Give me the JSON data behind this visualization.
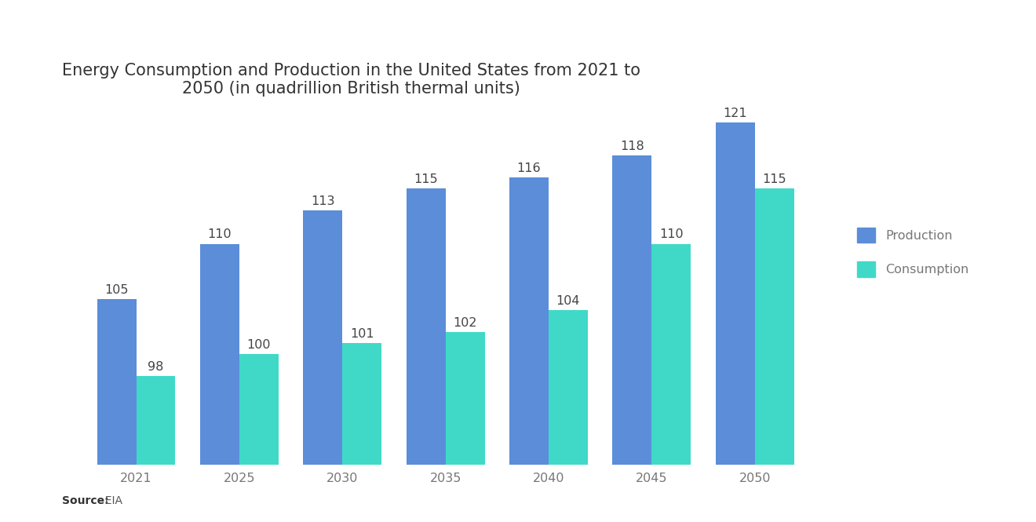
{
  "title": "Energy Consumption and Production in the United States from 2021 to\n2050 (in quadrillion British thermal units)",
  "categories": [
    "2021",
    "2025",
    "2030",
    "2035",
    "2040",
    "2045",
    "2050"
  ],
  "production": [
    105,
    110,
    113,
    115,
    116,
    118,
    121
  ],
  "consumption": [
    98,
    100,
    101,
    102,
    104,
    110,
    115
  ],
  "production_color": "#5B8DD9",
  "consumption_color": "#40D9C8",
  "background_color": "#ffffff",
  "title_fontsize": 15,
  "label_fontsize": 11.5,
  "tick_fontsize": 11.5,
  "bar_width": 0.38,
  "ylim": [
    90,
    125
  ],
  "legend_labels": [
    "Production",
    "Consumption"
  ],
  "source_bold": "Source:",
  "source_rest": "  EIA"
}
